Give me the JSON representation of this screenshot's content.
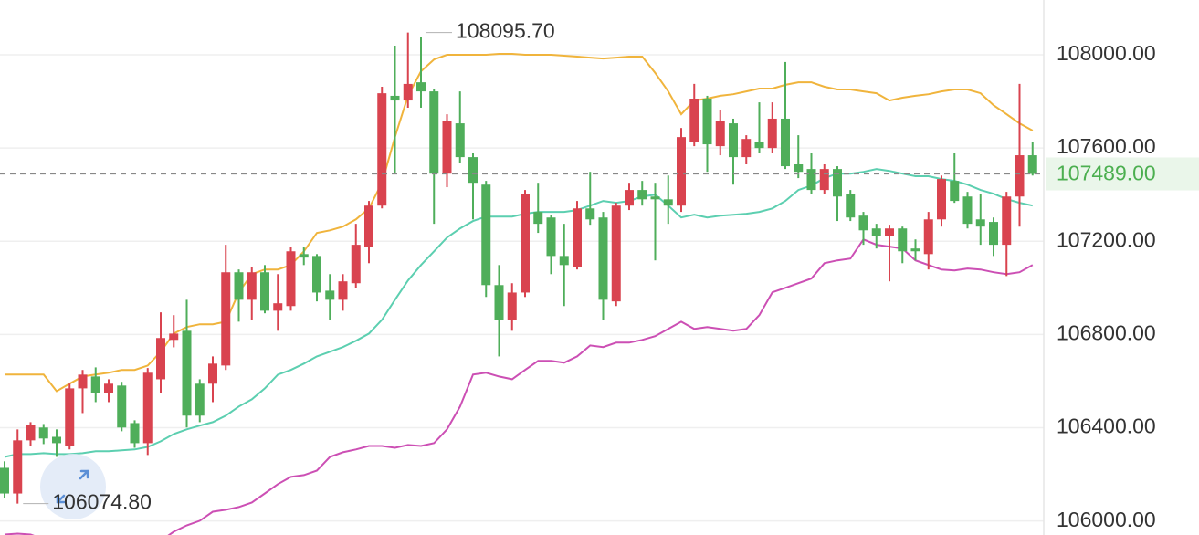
{
  "chart_data": {
    "type": "candlestick",
    "ylim": [
      105940,
      108235
    ],
    "yticks": [
      {
        "value": 108000,
        "label": "108000.00"
      },
      {
        "value": 107600,
        "label": "107600.00"
      },
      {
        "value": 107200,
        "label": "107200.00"
      },
      {
        "value": 106800,
        "label": "106800.00"
      },
      {
        "value": 106400,
        "label": "106400.00"
      },
      {
        "value": 106000,
        "label": "106000.00"
      }
    ],
    "grid": true,
    "up_color": "#d9434f",
    "down_color": "#4fae5a",
    "last_price": {
      "value": 107489,
      "label": "107489.00",
      "color": "#4caf50"
    },
    "annotations": [
      {
        "value": 108095.7,
        "label": "108095.70",
        "index": 32
      },
      {
        "value": 106074.8,
        "label": "106074.80",
        "index": 1
      }
    ],
    "open": [
      106228,
      106118,
      106346,
      106401,
      106361,
      106322,
      106569,
      106620,
      106550,
      106581,
      106420,
      106334,
      106608,
      106777,
      106816,
      106589,
      106589,
      106667,
      107067,
      106949,
      107067,
      106902,
      106922,
      107145,
      107137,
      106988,
      106949,
      107020,
      107177,
      107353,
      107824,
      107804,
      107882,
      107843,
      107490,
      107706,
      107561,
      107443,
      107012,
      106863,
      106980,
      107326,
      107302,
      107137,
      107091,
      107341,
      107302,
      106942,
      107353,
      107420,
      107392,
      107380,
      107353,
      107628,
      107812,
      107608,
      107706,
      107561,
      107628,
      107600,
      107726,
      107530,
      107510,
      107420,
      107510,
      107404,
      107310,
      107255,
      107224,
      107255,
      107169,
      107145,
      107294,
      107459,
      107392,
      107294,
      107283,
      107185,
      107392,
      107569
    ],
    "high": [
      106256,
      106393,
      106424,
      106416,
      106393,
      106589,
      106648,
      106659,
      106608,
      106597,
      106432,
      106656,
      106895,
      106883,
      106949,
      106608,
      106706,
      107185,
      107079,
      107091,
      107098,
      107059,
      107177,
      107177,
      107145,
      107059,
      107059,
      107275,
      107373,
      107863,
      108039,
      108095.7,
      108078,
      107851,
      107745,
      107843,
      107577,
      107459,
      107098,
      107020,
      107420,
      107451,
      107314,
      107275,
      107373,
      107498,
      107326,
      107365,
      107451,
      107459,
      107451,
      107482,
      107686,
      107875,
      107824,
      107765,
      107726,
      107655,
      107796,
      107796,
      107969,
      107655,
      107577,
      107530,
      107522,
      107420,
      107326,
      107275,
      107271,
      107263,
      107208,
      107326,
      107482,
      107577,
      107412,
      107404,
      107302,
      107412,
      107875,
      107628
    ],
    "low": [
      106099,
      106074.8,
      106322,
      106330,
      106275,
      106307,
      106463,
      106510,
      106510,
      106385,
      106314,
      106283,
      106550,
      106745,
      106401,
      106424,
      106510,
      106648,
      106855,
      106863,
      106891,
      106816,
      106902,
      107098,
      106942,
      106863,
      106902,
      107000,
      107106,
      107341,
      107490,
      107773,
      107773,
      107275,
      107432,
      107537,
      107294,
      106961,
      106706,
      106816,
      106961,
      107236,
      107059,
      106922,
      107079,
      107271,
      106863,
      106922,
      107334,
      107353,
      107118,
      107275,
      107326,
      107608,
      107498,
      107569,
      107443,
      107530,
      107577,
      107577,
      107510,
      107471,
      107404,
      107404,
      107287,
      107287,
      107185,
      107169,
      107028,
      107106,
      107118,
      107079,
      107263,
      107365,
      107255,
      107185,
      107137,
      107051,
      107263,
      107482
    ],
    "close": [
      106118,
      106346,
      106412,
      106354,
      106334,
      106569,
      106628,
      106550,
      106589,
      106401,
      106334,
      106636,
      106785,
      106804,
      106452,
      106452,
      106675,
      107067,
      106949,
      107067,
      106902,
      106934,
      107157,
      107130,
      106980,
      106949,
      107028,
      107185,
      107353,
      107835,
      107804,
      107875,
      107843,
      107490,
      107718,
      107561,
      107451,
      107012,
      106863,
      106980,
      107404,
      107275,
      107137,
      107098,
      107341,
      107294,
      106949,
      107353,
      107420,
      107380,
      107380,
      107353,
      107647,
      107812,
      107616,
      107718,
      107561,
      107639,
      107600,
      107726,
      107522,
      107498,
      107420,
      107510,
      107392,
      107302,
      107247,
      107224,
      107255,
      107157,
      107157,
      107294,
      107467,
      107373,
      107275,
      107263,
      107185,
      107392,
      107569,
      107489
    ],
    "bands": [
      {
        "color": "#f0b43c",
        "values": [
          106628,
          106628,
          106628,
          106628,
          106557,
          106589,
          106620,
          106628,
          106636,
          106648,
          106648,
          106667,
          106726,
          106804,
          106832,
          106844,
          106844,
          106855,
          106981,
          107059,
          107079,
          107079,
          107098,
          107157,
          107236,
          107247,
          107263,
          107294,
          107341,
          107451,
          107647,
          107824,
          107929,
          107980,
          108000,
          108000,
          108000,
          108000,
          108004,
          108004,
          108000,
          108000,
          108000,
          107996,
          107992,
          107988,
          107984,
          107988,
          107992,
          107992,
          107922,
          107843,
          107745,
          107804,
          107812,
          107824,
          107831,
          107843,
          107855,
          107855,
          107871,
          107882,
          107882,
          107863,
          107851,
          107851,
          107843,
          107835,
          107804,
          107816,
          107824,
          107831,
          107843,
          107851,
          107851,
          107835,
          107784,
          107745,
          107706,
          107675
        ]
      },
      {
        "color": "#5ccfb0",
        "values": [
          106275,
          106287,
          106287,
          106291,
          106287,
          106287,
          106291,
          106299,
          106299,
          106303,
          106307,
          106318,
          106342,
          106373,
          106393,
          106409,
          106424,
          106452,
          106491,
          106522,
          106569,
          106628,
          106648,
          106675,
          106706,
          106726,
          106746,
          106773,
          106804,
          106863,
          106949,
          107032,
          107098,
          107157,
          107216,
          107255,
          107287,
          107306,
          107306,
          107306,
          107318,
          107326,
          107326,
          107326,
          107334,
          107353,
          107373,
          107365,
          107373,
          107392,
          107400,
          107353,
          107302,
          107314,
          107302,
          107310,
          107314,
          107318,
          107326,
          107341,
          107373,
          107420,
          107439,
          107471,
          107490,
          107490,
          107498,
          107510,
          107502,
          107490,
          107479,
          107479,
          107467,
          107459,
          107443,
          107420,
          107404,
          107381,
          107365,
          107353
        ]
      },
      {
        "color": "#cc4fb4",
        "values": [
          105942,
          105946,
          105942,
          105922,
          105903,
          105891,
          105883,
          105883,
          105883,
          105883,
          105891,
          105899,
          105915,
          105954,
          105981,
          106001,
          106040,
          106048,
          106060,
          106079,
          106118,
          106158,
          106189,
          106197,
          106216,
          106275,
          106295,
          106307,
          106322,
          106322,
          106314,
          106326,
          106322,
          106334,
          106393,
          106491,
          106628,
          106636,
          106620,
          106608,
          106648,
          106687,
          106687,
          106679,
          106706,
          106753,
          106746,
          106765,
          106765,
          106777,
          106793,
          106824,
          106855,
          106824,
          106832,
          106824,
          106816,
          106824,
          106883,
          106981,
          107000,
          107020,
          107040,
          107106,
          107118,
          107126,
          107208,
          107185,
          107177,
          107169,
          107118,
          107098,
          107079,
          107075,
          107083,
          107079,
          107067,
          107059,
          107067,
          107098
        ]
      }
    ]
  }
}
